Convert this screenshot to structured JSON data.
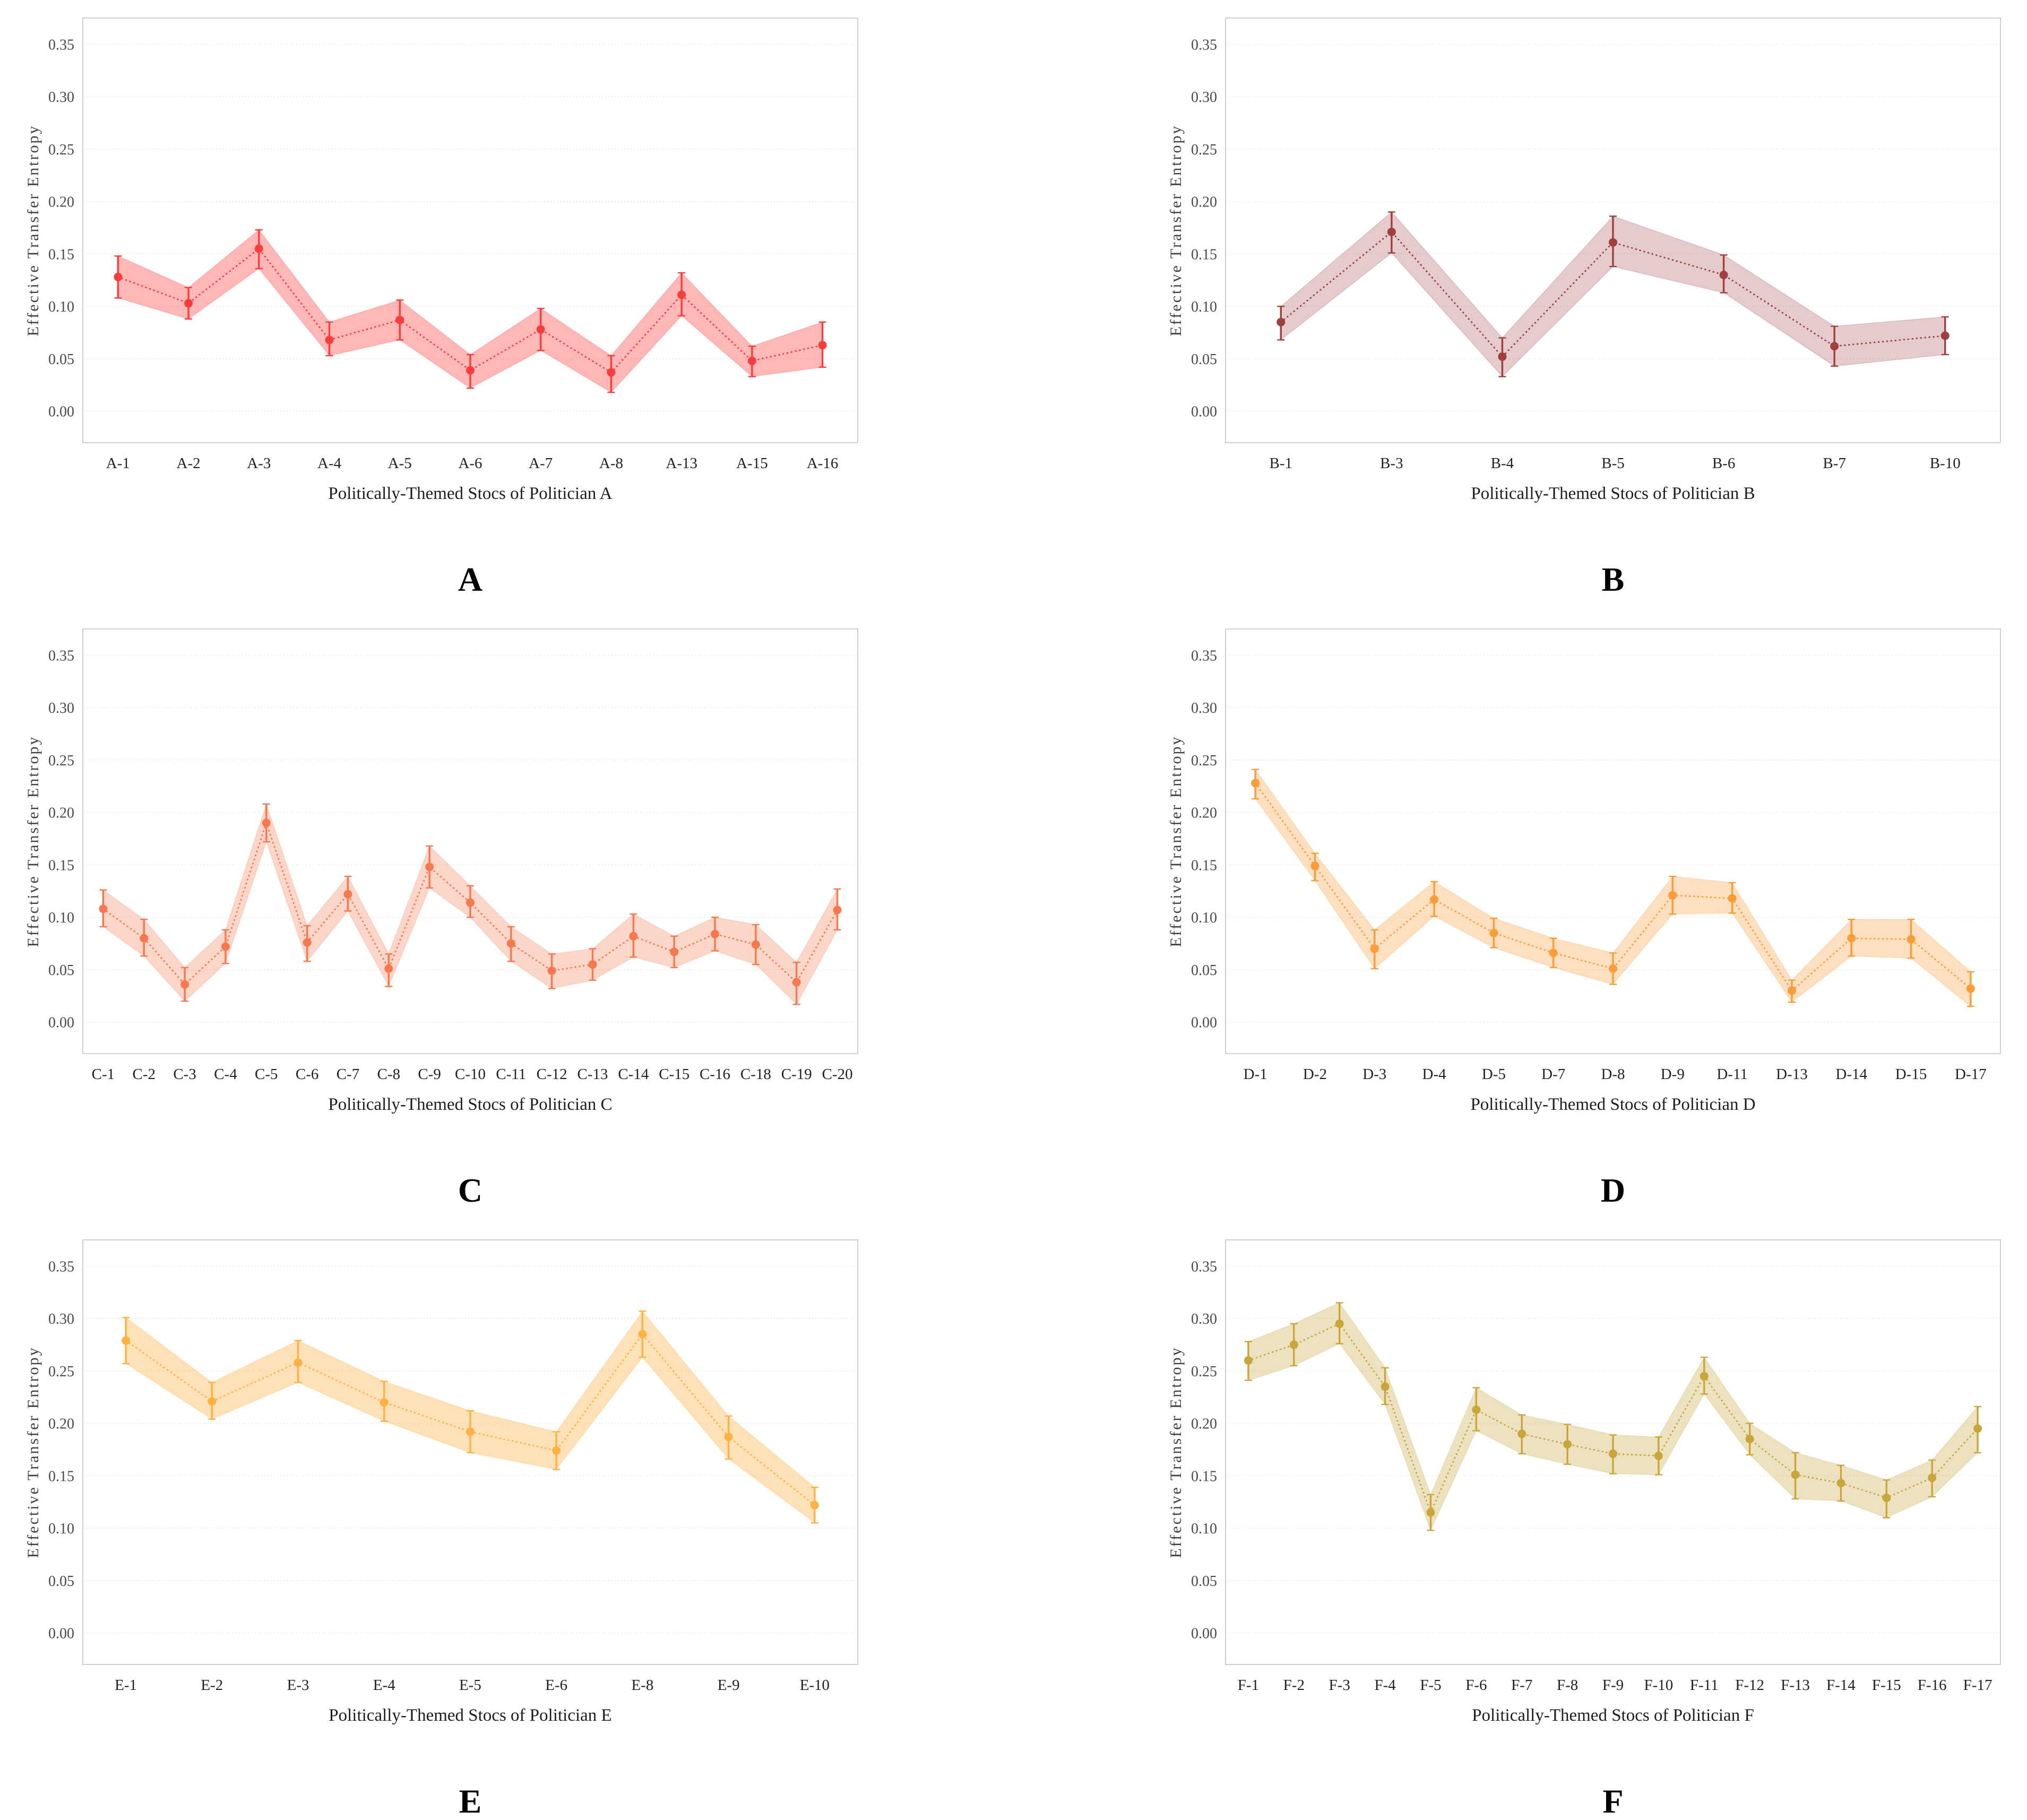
{
  "axis": {
    "ylabel": "Effective Transfer Entropy",
    "yticks": [
      "0.00",
      "0.05",
      "0.10",
      "0.15",
      "0.20",
      "0.25",
      "0.30",
      "0.35"
    ],
    "ylim": [
      -0.03,
      0.375
    ],
    "grid": "horizontal-dotted",
    "legend": "none"
  },
  "chart_data": [
    {
      "type": "line",
      "panel_label": "A",
      "xlabel": "Politically-Themed Stocs of Politician A",
      "ylabel": "Effective Transfer Entropy",
      "line_color": "#fa3c3c",
      "band_color": "rgba(255,45,45,0.34)",
      "categories": [
        "A-1",
        "A-2",
        "A-3",
        "A-4",
        "A-5",
        "A-6",
        "A-7",
        "A-8",
        "A-13",
        "A-15",
        "A-16"
      ],
      "values": [
        0.128,
        0.103,
        0.155,
        0.068,
        0.087,
        0.039,
        0.078,
        0.037,
        0.111,
        0.048,
        0.063
      ],
      "band_lower": [
        0.108,
        0.088,
        0.136,
        0.053,
        0.068,
        0.022,
        0.058,
        0.018,
        0.091,
        0.033,
        0.042
      ],
      "band_upper": [
        0.148,
        0.118,
        0.173,
        0.085,
        0.106,
        0.054,
        0.098,
        0.053,
        0.132,
        0.062,
        0.085
      ]
    },
    {
      "type": "line",
      "panel_label": "B",
      "xlabel": "Politically-Themed Stocs of Politician B",
      "ylabel": "Effective Transfer Entropy",
      "line_color": "#9f3f3f",
      "band_color": "rgba(159,63,63,0.27)",
      "categories": [
        "B-1",
        "B-3",
        "B-4",
        "B-5",
        "B-6",
        "B-7",
        "B-10"
      ],
      "values": [
        0.085,
        0.171,
        0.052,
        0.161,
        0.13,
        0.062,
        0.072
      ],
      "band_lower": [
        0.068,
        0.151,
        0.033,
        0.138,
        0.113,
        0.043,
        0.054
      ],
      "band_upper": [
        0.1,
        0.19,
        0.07,
        0.186,
        0.149,
        0.081,
        0.09
      ]
    },
    {
      "type": "line",
      "panel_label": "C",
      "xlabel": "Politically-Themed Stocs of Politician C",
      "ylabel": "Effective Transfer Entropy",
      "line_color": "#f7774e",
      "band_color": "rgba(247,119,78,0.30)",
      "categories": [
        "C-1",
        "C-2",
        "C-3",
        "C-4",
        "C-5",
        "C-6",
        "C-7",
        "C-8",
        "C-9",
        "C-10",
        "C-11",
        "C-12",
        "C-13",
        "C-14",
        "C-15",
        "C-16",
        "C-18",
        "C-19",
        "C-20"
      ],
      "values": [
        0.108,
        0.08,
        0.036,
        0.072,
        0.19,
        0.076,
        0.122,
        0.051,
        0.148,
        0.114,
        0.075,
        0.049,
        0.055,
        0.082,
        0.067,
        0.084,
        0.074,
        0.038,
        0.107
      ],
      "band_lower": [
        0.091,
        0.063,
        0.02,
        0.056,
        0.172,
        0.058,
        0.106,
        0.034,
        0.128,
        0.1,
        0.058,
        0.032,
        0.04,
        0.062,
        0.052,
        0.068,
        0.055,
        0.017,
        0.088
      ],
      "band_upper": [
        0.126,
        0.098,
        0.052,
        0.088,
        0.208,
        0.092,
        0.139,
        0.065,
        0.168,
        0.13,
        0.091,
        0.065,
        0.07,
        0.103,
        0.082,
        0.1,
        0.093,
        0.057,
        0.127
      ]
    },
    {
      "type": "line",
      "panel_label": "D",
      "xlabel": "Politically-Themed Stocs of Politician D",
      "ylabel": "Effective Transfer Entropy",
      "line_color": "#fb9c38",
      "band_color": "rgba(251,156,56,0.32)",
      "categories": [
        "D-1",
        "D-2",
        "D-3",
        "D-4",
        "D-5",
        "D-7",
        "D-8",
        "D-9",
        "D-11",
        "D-13",
        "D-14",
        "D-15",
        "D-17"
      ],
      "values": [
        0.228,
        0.149,
        0.07,
        0.117,
        0.085,
        0.066,
        0.051,
        0.121,
        0.118,
        0.03,
        0.08,
        0.079,
        0.032
      ],
      "band_lower": [
        0.213,
        0.135,
        0.051,
        0.101,
        0.071,
        0.052,
        0.036,
        0.103,
        0.104,
        0.019,
        0.063,
        0.061,
        0.015
      ],
      "band_upper": [
        0.241,
        0.161,
        0.088,
        0.134,
        0.099,
        0.08,
        0.066,
        0.139,
        0.133,
        0.04,
        0.098,
        0.098,
        0.048
      ]
    },
    {
      "type": "line",
      "panel_label": "E",
      "xlabel": "Politically-Themed Stocs of Politician E",
      "ylabel": "Effective Transfer Entropy",
      "line_color": "#ffb143",
      "band_color": "rgba(255,177,67,0.38)",
      "categories": [
        "E-1",
        "E-2",
        "E-3",
        "E-4",
        "E-5",
        "E-6",
        "E-8",
        "E-9",
        "E-10"
      ],
      "values": [
        0.279,
        0.221,
        0.258,
        0.22,
        0.192,
        0.174,
        0.285,
        0.187,
        0.122
      ],
      "band_lower": [
        0.257,
        0.204,
        0.239,
        0.202,
        0.172,
        0.156,
        0.263,
        0.166,
        0.105
      ],
      "band_upper": [
        0.301,
        0.239,
        0.279,
        0.24,
        0.212,
        0.192,
        0.307,
        0.207,
        0.139
      ]
    },
    {
      "type": "line",
      "panel_label": "F",
      "xlabel": "Politically-Themed Stocs of Politician F",
      "ylabel": "Effective Transfer Entropy",
      "line_color": "#c8a63c",
      "band_color": "rgba(200,166,60,0.32)",
      "categories": [
        "F-1",
        "F-2",
        "F-3",
        "F-4",
        "F-5",
        "F-6",
        "F-7",
        "F-8",
        "F-9",
        "F-10",
        "F-11",
        "F-12",
        "F-13",
        "F-14",
        "F-15",
        "F-16",
        "F-17"
      ],
      "values": [
        0.26,
        0.275,
        0.295,
        0.235,
        0.115,
        0.213,
        0.19,
        0.18,
        0.171,
        0.169,
        0.245,
        0.185,
        0.151,
        0.143,
        0.129,
        0.148,
        0.195
      ],
      "band_lower": [
        0.241,
        0.255,
        0.276,
        0.218,
        0.098,
        0.193,
        0.171,
        0.161,
        0.152,
        0.151,
        0.228,
        0.17,
        0.128,
        0.126,
        0.11,
        0.13,
        0.172
      ],
      "band_upper": [
        0.278,
        0.295,
        0.315,
        0.253,
        0.132,
        0.234,
        0.208,
        0.199,
        0.189,
        0.187,
        0.263,
        0.2,
        0.172,
        0.16,
        0.146,
        0.165,
        0.216
      ]
    }
  ]
}
